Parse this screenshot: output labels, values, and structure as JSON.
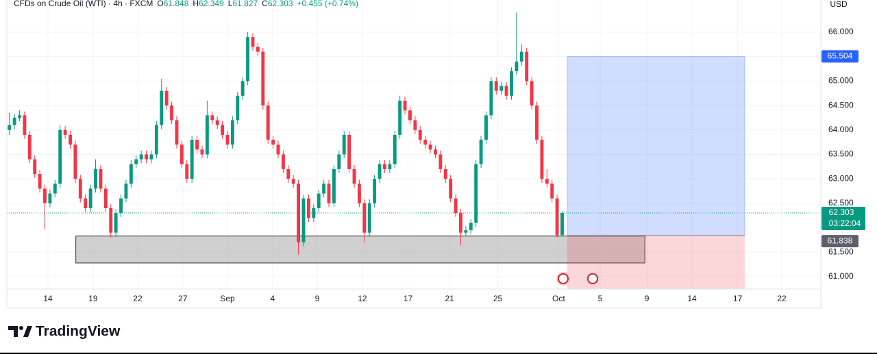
{
  "chart_data": {
    "type": "candlestick",
    "symbol": "CFDs on Crude Oil (WTI) · 4h · FXCM",
    "ohlc_prefixes": [
      "O",
      "H",
      "L",
      "C"
    ],
    "change": "+0.455 (+0.74%)",
    "currency": "USD",
    "countdown": "03:22:04",
    "brand": "TradingView",
    "up_color": "#089981",
    "down_color": "#f23645",
    "grid": true,
    "xlim": [
      0,
      160.5
    ],
    "xticks": [
      {
        "value": 8.1,
        "label": "14"
      },
      {
        "value": 17.0,
        "label": "19"
      },
      {
        "value": 25.8,
        "label": "22"
      },
      {
        "value": 34.7,
        "label": "27"
      },
      {
        "value": 43.5,
        "label": "Sep"
      },
      {
        "value": 52.4,
        "label": "4"
      },
      {
        "value": 61.2,
        "label": "9"
      },
      {
        "value": 70.1,
        "label": "12"
      },
      {
        "value": 79.1,
        "label": "17"
      },
      {
        "value": 87.3,
        "label": "21"
      },
      {
        "value": 96.8,
        "label": "25"
      },
      {
        "value": 108.8,
        "label": "Oct"
      },
      {
        "value": 117.0,
        "label": "5"
      },
      {
        "value": 126.2,
        "label": "9"
      },
      {
        "value": 135.1,
        "label": "14"
      },
      {
        "value": 144.1,
        "label": "17"
      },
      {
        "value": 152.8,
        "label": "22"
      }
    ],
    "ylim": [
      60.748,
      66.658
    ],
    "yticks": [
      {
        "value": 61,
        "label": "61.000"
      },
      {
        "value": 61.5,
        "label": "61.500"
      },
      {
        "value": 62.5,
        "label": "62.500"
      },
      {
        "value": 63,
        "label": "63.000"
      },
      {
        "value": 63.5,
        "label": "63.500"
      },
      {
        "value": 64,
        "label": "64.000"
      },
      {
        "value": 64.5,
        "label": "64.500"
      },
      {
        "value": 65,
        "label": "65.000"
      },
      {
        "value": 65.5,
        "label": "65.500"
      },
      {
        "value": 66,
        "label": "66.000"
      }
    ],
    "zone": {
      "x": [
        13.6,
        125.8
      ],
      "y": [
        61.28,
        61.83
      ]
    },
    "position": {
      "x": [
        110.5,
        145.5
      ],
      "target": 65.504,
      "entry": 61.838,
      "stop": 60.75
    },
    "series": [
      {
        "open": [
          64.0,
          64.1,
          64.25,
          64.3,
          63.9,
          63.4,
          63.1,
          62.8,
          62.5,
          62.7,
          62.9,
          64.0,
          63.9,
          63.7,
          63.0,
          62.6,
          62.4,
          62.8,
          63.2,
          62.8,
          62.4,
          61.9,
          62.3,
          62.6,
          62.9,
          63.3,
          63.4,
          63.5,
          63.4,
          63.5,
          64.1,
          64.8,
          64.5,
          64.2,
          63.7,
          63.3,
          63.0,
          63.8,
          63.6,
          63.5,
          64.3,
          64.2,
          64.1,
          63.9,
          63.7,
          64.2,
          64.7,
          65.0,
          65.9,
          65.7,
          65.6,
          64.5,
          63.8,
          63.7,
          63.5,
          63.2,
          63.0,
          62.9,
          61.7,
          62.6,
          62.2,
          62.4,
          62.7,
          62.9,
          62.5,
          63.2,
          63.5,
          63.9,
          63.2,
          62.9,
          62.5,
          61.9,
          62.5,
          63.0,
          63.3,
          63.2,
          63.3,
          63.9,
          64.6,
          64.4,
          64.2,
          64.0,
          63.8,
          63.7,
          63.6,
          63.5,
          63.2,
          63.0,
          62.6,
          62.3,
          61.9,
          61.95,
          62.1,
          63.3,
          63.8,
          64.3,
          65.0,
          64.8,
          64.9,
          64.7,
          65.2,
          65.4,
          65.6,
          65.0,
          64.5,
          63.8,
          63.0,
          62.9,
          62.6,
          61.848
        ],
        "high": [
          64.35,
          64.33,
          64.4,
          64.38,
          63.98,
          63.48,
          63.18,
          62.88,
          62.78,
          62.98,
          64.1,
          64.08,
          63.98,
          63.78,
          63.08,
          62.68,
          62.88,
          63.4,
          63.28,
          62.88,
          62.48,
          62.38,
          62.68,
          62.98,
          63.38,
          63.48,
          63.58,
          63.58,
          63.58,
          64.18,
          65.05,
          64.88,
          64.58,
          64.28,
          63.78,
          63.38,
          63.88,
          63.88,
          63.68,
          64.6,
          64.38,
          64.28,
          64.18,
          63.98,
          64.28,
          64.78,
          65.08,
          66.0,
          65.98,
          65.78,
          65.68,
          64.58,
          63.88,
          63.78,
          63.58,
          63.28,
          63.08,
          62.98,
          62.68,
          62.68,
          62.48,
          62.78,
          62.98,
          62.98,
          63.28,
          63.58,
          63.98,
          63.98,
          63.28,
          62.98,
          62.58,
          62.58,
          63.08,
          63.38,
          63.38,
          63.38,
          63.98,
          64.7,
          64.68,
          64.48,
          64.28,
          64.08,
          63.88,
          63.78,
          63.68,
          63.58,
          63.28,
          63.08,
          62.68,
          62.38,
          62.03,
          62.18,
          63.38,
          63.88,
          64.38,
          65.08,
          65.08,
          64.98,
          64.98,
          65.28,
          66.4,
          65.75,
          65.68,
          65.08,
          64.58,
          63.88,
          63.2,
          62.98,
          62.68,
          62.349
        ],
        "low": [
          63.9,
          64.02,
          64.18,
          63.82,
          63.32,
          63.02,
          62.72,
          61.97,
          62.42,
          62.62,
          62.82,
          63.82,
          63.62,
          62.92,
          62.52,
          62.32,
          62.32,
          62.72,
          62.72,
          62.32,
          61.8,
          61.82,
          62.22,
          62.52,
          62.82,
          63.22,
          63.32,
          63.32,
          63.32,
          63.42,
          64.02,
          64.42,
          64.12,
          63.62,
          63.22,
          62.92,
          62.92,
          63.52,
          63.42,
          63.42,
          64.12,
          64.02,
          63.82,
          63.62,
          63.62,
          64.12,
          64.62,
          64.92,
          65.62,
          65.52,
          64.42,
          63.72,
          63.62,
          63.42,
          63.12,
          62.92,
          62.82,
          61.45,
          61.62,
          62.12,
          62.12,
          62.32,
          62.62,
          62.42,
          62.42,
          63.12,
          63.42,
          63.12,
          62.82,
          62.42,
          61.7,
          61.82,
          62.42,
          62.92,
          63.12,
          63.12,
          63.22,
          63.82,
          64.32,
          64.12,
          63.92,
          63.72,
          63.62,
          63.52,
          63.42,
          63.12,
          62.92,
          62.52,
          62.22,
          61.64,
          61.82,
          61.87,
          62.02,
          63.22,
          63.72,
          64.22,
          64.72,
          64.72,
          64.62,
          64.62,
          65.12,
          65.32,
          64.92,
          64.42,
          63.72,
          62.92,
          62.82,
          62.52,
          61.8,
          61.827
        ],
        "close": [
          64.1,
          64.25,
          64.3,
          63.9,
          63.4,
          63.1,
          62.8,
          62.5,
          62.7,
          62.9,
          64.0,
          63.9,
          63.7,
          63.0,
          62.6,
          62.4,
          62.8,
          63.2,
          62.8,
          62.4,
          61.9,
          62.3,
          62.6,
          62.9,
          63.3,
          63.4,
          63.5,
          63.4,
          63.5,
          64.1,
          64.8,
          64.5,
          64.2,
          63.7,
          63.3,
          63.0,
          63.8,
          63.6,
          63.5,
          64.3,
          64.2,
          64.1,
          63.9,
          63.7,
          64.2,
          64.7,
          65.0,
          65.9,
          65.7,
          65.6,
          64.5,
          63.8,
          63.7,
          63.5,
          63.2,
          63.0,
          62.9,
          61.7,
          62.6,
          62.2,
          62.4,
          62.7,
          62.9,
          62.5,
          63.2,
          63.5,
          63.9,
          63.2,
          62.9,
          62.5,
          61.9,
          62.5,
          63.0,
          63.3,
          63.2,
          63.3,
          63.9,
          64.6,
          64.4,
          64.2,
          64.0,
          63.8,
          63.7,
          63.6,
          63.5,
          63.2,
          63.0,
          62.6,
          62.3,
          61.9,
          61.95,
          62.1,
          63.3,
          63.8,
          64.3,
          65.0,
          64.8,
          64.9,
          64.7,
          65.2,
          65.4,
          65.6,
          65.0,
          64.5,
          63.8,
          63.0,
          62.9,
          62.6,
          61.848,
          62.303
        ]
      }
    ]
  }
}
